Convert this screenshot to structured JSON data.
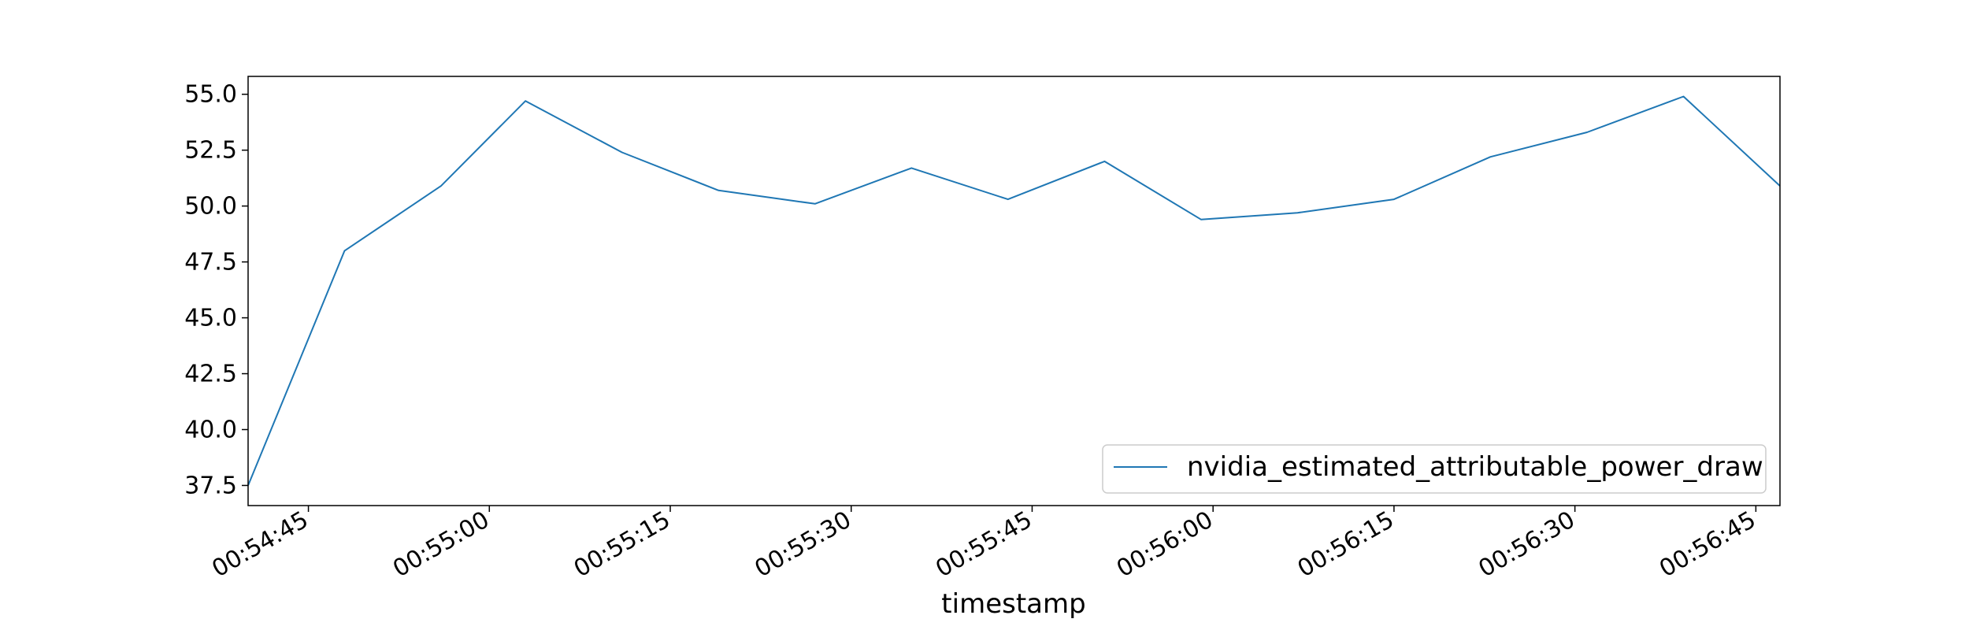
{
  "chart_data": {
    "type": "line",
    "title": "",
    "xlabel": "timestamp",
    "ylabel": "",
    "x_axis_type": "time",
    "xlim": [
      "00:54:40",
      "00:56:47"
    ],
    "ylim": [
      36.6,
      55.8
    ],
    "x_ticks": [
      "00:54:45",
      "00:55:00",
      "00:55:15",
      "00:55:30",
      "00:55:45",
      "00:56:00",
      "00:56:15",
      "00:56:30",
      "00:56:45"
    ],
    "y_ticks": [
      "37.5",
      "40.0",
      "42.5",
      "45.0",
      "47.5",
      "50.0",
      "52.5",
      "55.0"
    ],
    "grid": false,
    "legend_position": "lower-right",
    "series": [
      {
        "name": "nvidia_estimated_attributable_power_draw",
        "color": "#1f77b4",
        "x": [
          "00:54:40",
          "00:54:48",
          "00:54:56",
          "00:55:03",
          "00:55:11",
          "00:55:19",
          "00:55:27",
          "00:55:35",
          "00:55:43",
          "00:55:51",
          "00:55:59",
          "00:56:07",
          "00:56:15",
          "00:56:23",
          "00:56:31",
          "00:56:39",
          "00:56:47"
        ],
        "y": [
          37.5,
          48.0,
          50.9,
          54.7,
          52.4,
          50.7,
          50.1,
          51.7,
          50.3,
          52.0,
          49.4,
          49.7,
          50.3,
          52.2,
          53.3,
          54.9,
          50.9
        ]
      }
    ]
  }
}
